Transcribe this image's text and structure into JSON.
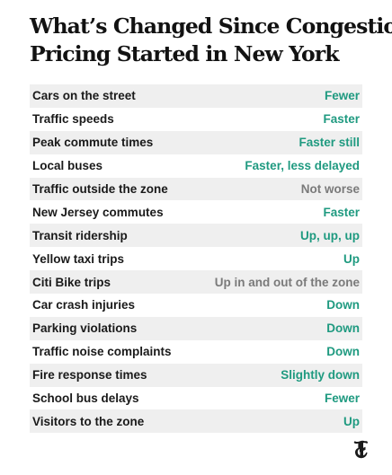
{
  "title": {
    "line1": "What’s Changed Since Congestion",
    "line2": "Pricing Started in New York"
  },
  "rows": [
    {
      "label": "Cars on the street",
      "value": "Fewer",
      "tone": "green"
    },
    {
      "label": "Traffic speeds",
      "value": "Faster",
      "tone": "green"
    },
    {
      "label": "Peak commute times",
      "value": "Faster still",
      "tone": "green"
    },
    {
      "label": "Local buses",
      "value": "Faster, less delayed",
      "tone": "green"
    },
    {
      "label": "Traffic outside the zone",
      "value": "Not worse",
      "tone": "gray"
    },
    {
      "label": "New Jersey commutes",
      "value": "Faster",
      "tone": "green"
    },
    {
      "label": "Transit ridership",
      "value": "Up, up, up",
      "tone": "green"
    },
    {
      "label": "Yellow taxi trips",
      "value": "Up",
      "tone": "green"
    },
    {
      "label": "Citi Bike trips",
      "value": "Up in and out of the zone",
      "tone": "gray"
    },
    {
      "label": "Car crash injuries",
      "value": "Down",
      "tone": "green"
    },
    {
      "label": "Parking violations",
      "value": "Down",
      "tone": "green"
    },
    {
      "label": "Traffic noise complaints",
      "value": "Down",
      "tone": "green"
    },
    {
      "label": "Fire response times",
      "value": "Slightly down",
      "tone": "green"
    },
    {
      "label": "School bus delays",
      "value": "Fewer",
      "tone": "green"
    },
    {
      "label": "Visitors to the zone",
      "value": "Up",
      "tone": "green"
    }
  ],
  "colors": {
    "positive": "#1f9a80",
    "neutral": "#7a7a7a",
    "row_shade": "#efefef",
    "text": "#121212"
  },
  "logo": {
    "icon": "nyt-t-logo-icon"
  }
}
